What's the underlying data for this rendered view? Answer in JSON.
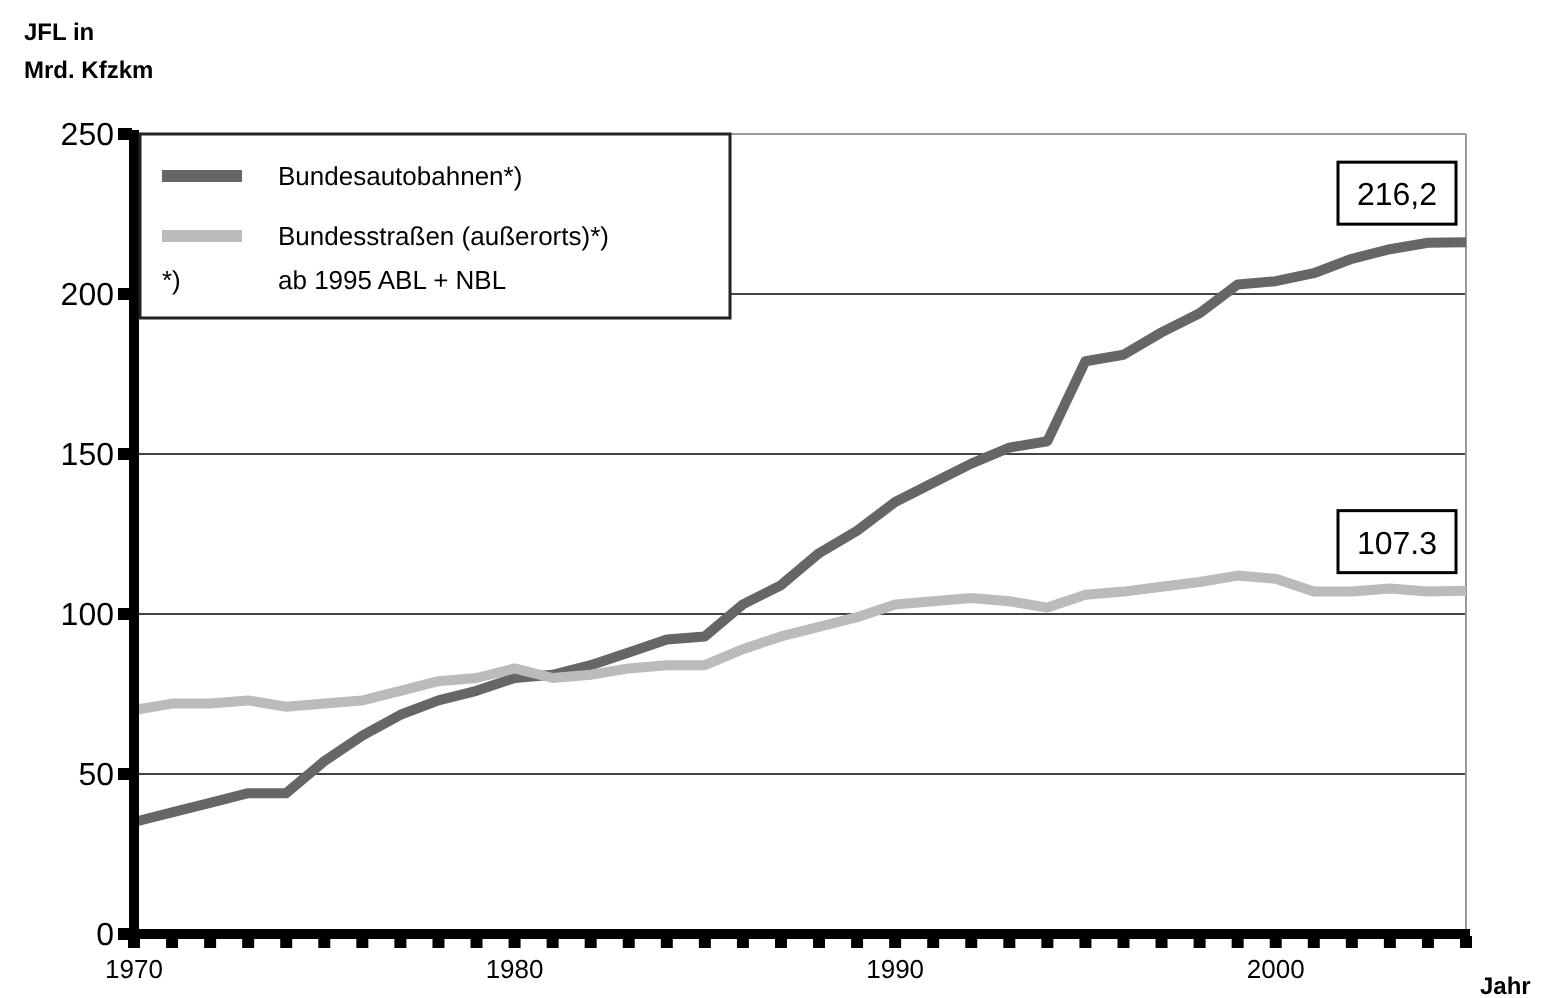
{
  "chart_data": {
    "type": "line",
    "ylabel": "JFL in\nMrd. Kfzkm",
    "xlabel": "Jahr",
    "x": [
      1970,
      1971,
      1972,
      1973,
      1974,
      1975,
      1976,
      1977,
      1978,
      1979,
      1980,
      1981,
      1982,
      1983,
      1984,
      1985,
      1986,
      1987,
      1988,
      1989,
      1990,
      1991,
      1992,
      1993,
      1994,
      1995,
      1996,
      1997,
      1998,
      1999,
      2000,
      2001,
      2002,
      2003,
      2004,
      2005
    ],
    "series": [
      {
        "name": "Bundesautobahnen*)",
        "color": "#666666",
        "values": [
          35,
          38,
          41,
          44,
          44,
          54,
          62,
          68.5,
          73,
          76,
          80,
          81,
          84,
          88,
          92,
          93,
          103,
          109,
          119,
          126,
          135,
          141,
          147,
          152,
          154,
          179,
          181,
          188,
          194,
          203,
          204,
          206.5,
          211,
          214,
          216,
          216.2
        ]
      },
      {
        "name": "Bundesstraßen (außerorts)*)",
        "color": "#bbbbbb",
        "values": [
          70,
          72,
          72,
          73,
          71,
          72,
          73,
          76,
          79,
          80,
          83,
          80,
          81,
          83,
          84,
          84,
          89,
          93,
          96,
          99,
          103,
          104,
          105,
          104,
          102,
          106,
          107,
          108.5,
          110,
          112,
          111,
          107,
          107,
          108,
          107,
          107.3
        ]
      }
    ],
    "xlim": [
      1970,
      2005
    ],
    "ylim": [
      0,
      250
    ],
    "xticks": [
      1970,
      {
        "value": 1971,
        "label": null
      },
      {
        "value": 1972,
        "label": null
      },
      {
        "value": 1973,
        "label": null
      },
      {
        "value": 1974,
        "label": null
      },
      {
        "value": 1975,
        "label": null
      },
      {
        "value": 1976,
        "label": null
      },
      {
        "value": 1977,
        "label": null
      },
      {
        "value": 1978,
        "label": null
      },
      {
        "value": 1979,
        "label": null
      },
      1980,
      {
        "value": 1981,
        "label": null
      },
      {
        "value": 1982,
        "label": null
      },
      {
        "value": 1983,
        "label": null
      },
      {
        "value": 1984,
        "label": null
      },
      {
        "value": 1985,
        "label": null
      },
      {
        "value": 1986,
        "label": null
      },
      {
        "value": 1987,
        "label": null
      },
      {
        "value": 1988,
        "label": null
      },
      {
        "value": 1989,
        "label": null
      },
      1990,
      {
        "value": 1991,
        "label": null
      },
      {
        "value": 1992,
        "label": null
      },
      {
        "value": 1993,
        "label": null
      },
      {
        "value": 1994,
        "label": null
      },
      {
        "value": 1995,
        "label": null
      },
      {
        "value": 1996,
        "label": null
      },
      {
        "value": 1997,
        "label": null
      },
      {
        "value": 1998,
        "label": null
      },
      {
        "value": 1999,
        "label": null
      },
      2000,
      {
        "value": 2001,
        "label": null
      },
      {
        "value": 2002,
        "label": null
      },
      {
        "value": 2003,
        "label": null
      },
      {
        "value": 2004,
        "label": null
      },
      {
        "value": 2005,
        "label": null
      }
    ],
    "yticks": [
      0,
      50,
      100,
      150,
      200,
      250
    ],
    "grid": "y",
    "legend": "top left",
    "marker": "none",
    "line_style": "solid",
    "annotations": [
      {
        "text": "216,2",
        "x": 2005,
        "y": 216.2
      },
      {
        "text": "107.3",
        "x": 2005,
        "y": 107.3
      },
      "*)",
      "ab 1995 ABL + NBL"
    ]
  }
}
